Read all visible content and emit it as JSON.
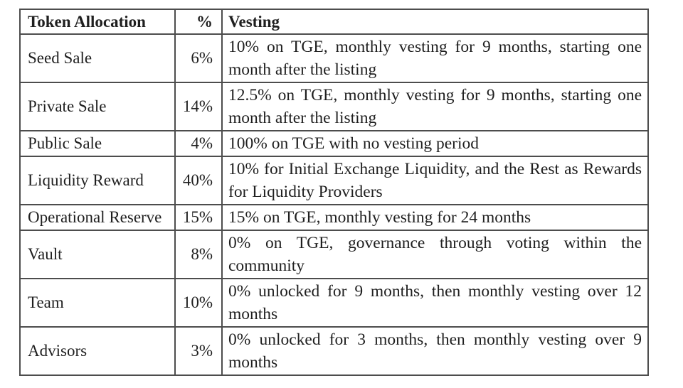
{
  "table": {
    "headers": {
      "allocation": "Token Allocation",
      "percent": "%",
      "vesting": "Vesting"
    },
    "rows": [
      {
        "allocation": "Seed Sale",
        "percent": "6%",
        "vesting": "10% on TGE, monthly vesting for 9 months, starting one month after the listing"
      },
      {
        "allocation": "Private Sale",
        "percent": "14%",
        "vesting": "12.5% on TGE, monthly vesting for 9 months, starting one month after the listing"
      },
      {
        "allocation": "Public Sale",
        "percent": "4%",
        "vesting": "100% on TGE with no vesting period"
      },
      {
        "allocation": "Liquidity Reward",
        "percent": "40%",
        "vesting": "10% for Initial Exchange Liquidity, and the Rest as Rewards for Liquidity Providers"
      },
      {
        "allocation": "Operational Reserve",
        "percent": "15%",
        "vesting": "15% on TGE, monthly vesting for 24 months"
      },
      {
        "allocation": "Vault",
        "percent": "8%",
        "vesting": "0% on TGE, governance through voting within the community"
      },
      {
        "allocation": "Team",
        "percent": "10%",
        "vesting": "0% unlocked for 9 months, then monthly vesting over 12 months"
      },
      {
        "allocation": "Advisors",
        "percent": "3%",
        "vesting": "0% unlocked for 3 months, then monthly vesting over 9 months"
      }
    ]
  },
  "colors": {
    "border": "#4d4d4d",
    "text": "#1f1f1f",
    "background": "#ffffff"
  }
}
